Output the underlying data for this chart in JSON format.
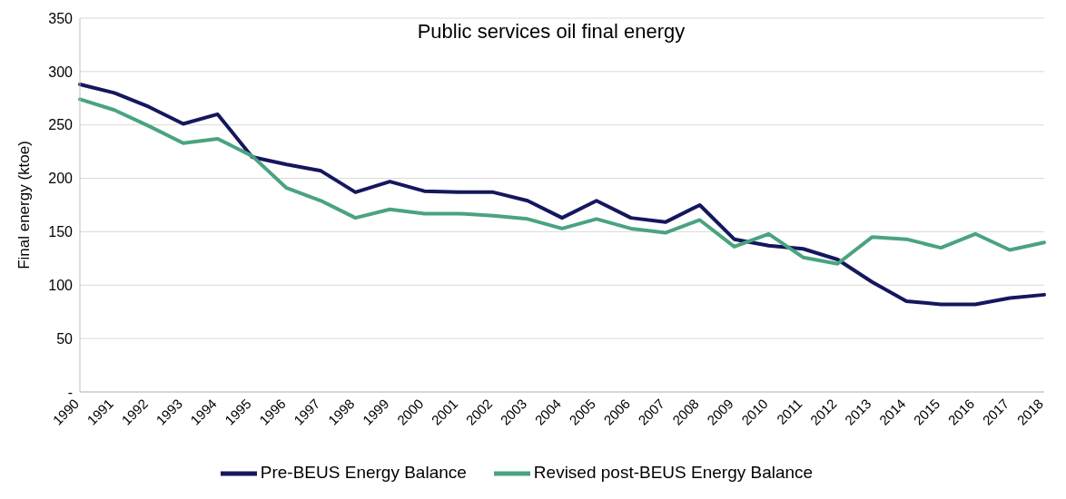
{
  "chart_data": {
    "type": "line",
    "title": "Public services oil final energy",
    "ylabel": "Final energy (ktoe)",
    "categories": [
      "1990",
      "1991",
      "1992",
      "1993",
      "1994",
      "1995",
      "1996",
      "1997",
      "1998",
      "1999",
      "2000",
      "2001",
      "2002",
      "2003",
      "2004",
      "2005",
      "2006",
      "2007",
      "2008",
      "2009",
      "2010",
      "2011",
      "2012",
      "2013",
      "2014",
      "2015",
      "2016",
      "2017",
      "2018"
    ],
    "series": [
      {
        "name": "Pre-BEUS Energy Balance",
        "color": "#15175e",
        "values": [
          288,
          280,
          267,
          251,
          260,
          220,
          213,
          207,
          187,
          197,
          188,
          187,
          187,
          179,
          163,
          179,
          163,
          159,
          175,
          143,
          137,
          134,
          124,
          103,
          85,
          82,
          82,
          88,
          91
        ]
      },
      {
        "name": "Revised post-BEUS Energy Balance",
        "color": "#4aa37f",
        "values": [
          274,
          264,
          249,
          233,
          237,
          221,
          191,
          179,
          163,
          171,
          167,
          167,
          165,
          162,
          153,
          162,
          153,
          149,
          161,
          136,
          148,
          126,
          120,
          145,
          143,
          135,
          148,
          133,
          140
        ]
      }
    ],
    "ylim": [
      0,
      350
    ],
    "yticks": [
      {
        "value": 0,
        "label": "-"
      },
      50,
      100,
      150,
      200,
      250,
      300,
      350
    ],
    "grid": "y",
    "legend": "bottom",
    "marker": "none",
    "line_style": "solid"
  }
}
